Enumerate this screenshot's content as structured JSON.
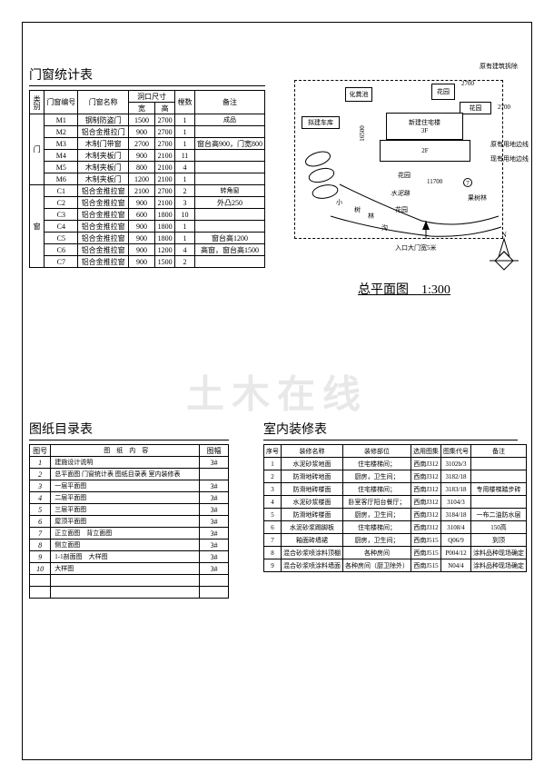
{
  "watermark": "土木在线",
  "doorWindow": {
    "title": "门窗统计表",
    "header": {
      "cat": "类别",
      "code": "门窗编号",
      "name": "门窗名称",
      "w": "宽",
      "h": "高",
      "sizeGroup": "洞口尺寸",
      "qty": "樘数",
      "remark": "备注"
    },
    "groups": [
      {
        "cat": "门",
        "rows": [
          {
            "code": "M1",
            "name": "钢制防盗门",
            "w": "1500",
            "h": "2700",
            "qty": "1",
            "remark": "成品"
          },
          {
            "code": "M2",
            "name": "铝合金推拉门",
            "w": "900",
            "h": "2700",
            "qty": "1",
            "remark": ""
          },
          {
            "code": "M3",
            "name": "木制门带窗",
            "w": "2700",
            "h": "2700",
            "qty": "1",
            "remark": "窗台高900，门宽800"
          },
          {
            "code": "M4",
            "name": "木制夹板门",
            "w": "900",
            "h": "2100",
            "qty": "11",
            "remark": ""
          },
          {
            "code": "M5",
            "name": "木制夹板门",
            "w": "800",
            "h": "2100",
            "qty": "4",
            "remark": ""
          },
          {
            "code": "M6",
            "name": "木制夹板门",
            "w": "1200",
            "h": "2100",
            "qty": "1",
            "remark": ""
          }
        ]
      },
      {
        "cat": "窗",
        "rows": [
          {
            "code": "C1",
            "name": "铝合金推拉窗",
            "w": "2100",
            "h": "2700",
            "qty": "2",
            "remark": "转角窗"
          },
          {
            "code": "C2",
            "name": "铝合金推拉窗",
            "w": "900",
            "h": "2100",
            "qty": "3",
            "remark": "外凸250"
          },
          {
            "code": "C3",
            "name": "铝合金推拉窗",
            "w": "600",
            "h": "1800",
            "qty": "10",
            "remark": ""
          },
          {
            "code": "C4",
            "name": "铝合金推拉窗",
            "w": "900",
            "h": "1800",
            "qty": "1",
            "remark": ""
          },
          {
            "code": "C5",
            "name": "铝合金推拉窗",
            "w": "900",
            "h": "1800",
            "qty": "1",
            "remark": "窗台高1200"
          },
          {
            "code": "C6",
            "name": "铝合金推拉窗",
            "w": "900",
            "h": "1200",
            "qty": "4",
            "remark": "高窗，窗台高1500"
          },
          {
            "code": "C7",
            "name": "铝合金推拉窗",
            "w": "900",
            "h": "1500",
            "qty": "2",
            "remark": ""
          }
        ]
      }
    ]
  },
  "drawingIndex": {
    "title": "图纸目录表",
    "header": {
      "no": "图号",
      "name": "图　纸　内　容",
      "fmt": "图幅"
    },
    "rows": [
      {
        "no": "1",
        "name": "建施设计说明",
        "fmt": "3#"
      },
      {
        "no": "2",
        "name": "总平面图 门窗统计表 图纸目录表 室内装修表",
        "fmt": ""
      },
      {
        "no": "3",
        "name": "一层平面图",
        "fmt": "3#"
      },
      {
        "no": "4",
        "name": "二层平面图",
        "fmt": "3#"
      },
      {
        "no": "5",
        "name": "三层平面图",
        "fmt": "3#"
      },
      {
        "no": "6",
        "name": "屋顶平面图",
        "fmt": "3#"
      },
      {
        "no": "7",
        "name": "正立面图　背立面图",
        "fmt": "3#"
      },
      {
        "no": "8",
        "name": "侧立面图",
        "fmt": "3#"
      },
      {
        "no": "9",
        "name": "1-1剖面图　大样图",
        "fmt": "3#"
      },
      {
        "no": "10",
        "name": "大样图",
        "fmt": "3#"
      },
      {
        "no": "",
        "name": "",
        "fmt": ""
      },
      {
        "no": "",
        "name": "",
        "fmt": ""
      }
    ]
  },
  "interior": {
    "title": "室内装修表",
    "header": {
      "no": "序号",
      "name": "装修名称",
      "part": "装修部位",
      "atlas": "选用图集",
      "code": "图集代号",
      "remark": "备注"
    },
    "rows": [
      {
        "no": "1",
        "name": "水泥砂浆地面",
        "part": "住宅楼梯间；",
        "atlas": "西南J312",
        "code": "3102b/3",
        "remark": ""
      },
      {
        "no": "2",
        "name": "防滑地砖地面",
        "part": "厨房，卫生间；",
        "atlas": "西南J312",
        "code": "3182/18",
        "remark": ""
      },
      {
        "no": "3",
        "name": "防滑地砖楼面",
        "part": "住宅楼梯间；",
        "atlas": "西南J312",
        "code": "3183/18",
        "remark": "专用楼梯踏步砖"
      },
      {
        "no": "4",
        "name": "水泥砂浆楼面",
        "part": "卧室客厅阳台餐厅；",
        "atlas": "西南J312",
        "code": "3104/3",
        "remark": ""
      },
      {
        "no": "5",
        "name": "防滑地砖楼面",
        "part": "厨房，卫生间；",
        "atlas": "西南J312",
        "code": "3184/18",
        "remark": "一布二油防水层"
      },
      {
        "no": "6",
        "name": "水泥砂浆踢脚板",
        "part": "住宅楼梯间；",
        "atlas": "西南J312",
        "code": "3108/4",
        "remark": "150高"
      },
      {
        "no": "7",
        "name": "釉面砖墙裙",
        "part": "厨房，卫生间；",
        "atlas": "西南J515",
        "code": "Q06/9",
        "remark": "到顶"
      },
      {
        "no": "8",
        "name": "混合砂浆喷涂料顶棚",
        "part": "各种房间",
        "atlas": "西南J515",
        "code": "P004/12",
        "remark": "涂料品种现场确定"
      },
      {
        "no": "9",
        "name": "混合砂浆喷涂料墙面",
        "part": "各种房间（厨卫除外）",
        "atlas": "西南J515",
        "code": "N04/4",
        "remark": "涂料品种现场确定"
      }
    ]
  },
  "siteplan": {
    "title": "总平面图　1:300",
    "labels": {
      "existing_demolish": "原有建筑拆除",
      "garden": "花园",
      "pool": "化粪池",
      "garage": "拟建车库",
      "house": "新建住宅楼",
      "floor3": "3F",
      "floor2": "2F",
      "existing_land": "原有用地边线",
      "current_land": "现有用地边线",
      "orchard": "果树林",
      "grove": "小树林",
      "cement_road": "水泥路",
      "ditch": "沟",
      "entrance": "入口大门宽5米",
      "dim1": "2700",
      "dim2": "2700",
      "dim3": "16500",
      "dim4": "11700",
      "axis7": "7",
      "north": "N"
    }
  }
}
